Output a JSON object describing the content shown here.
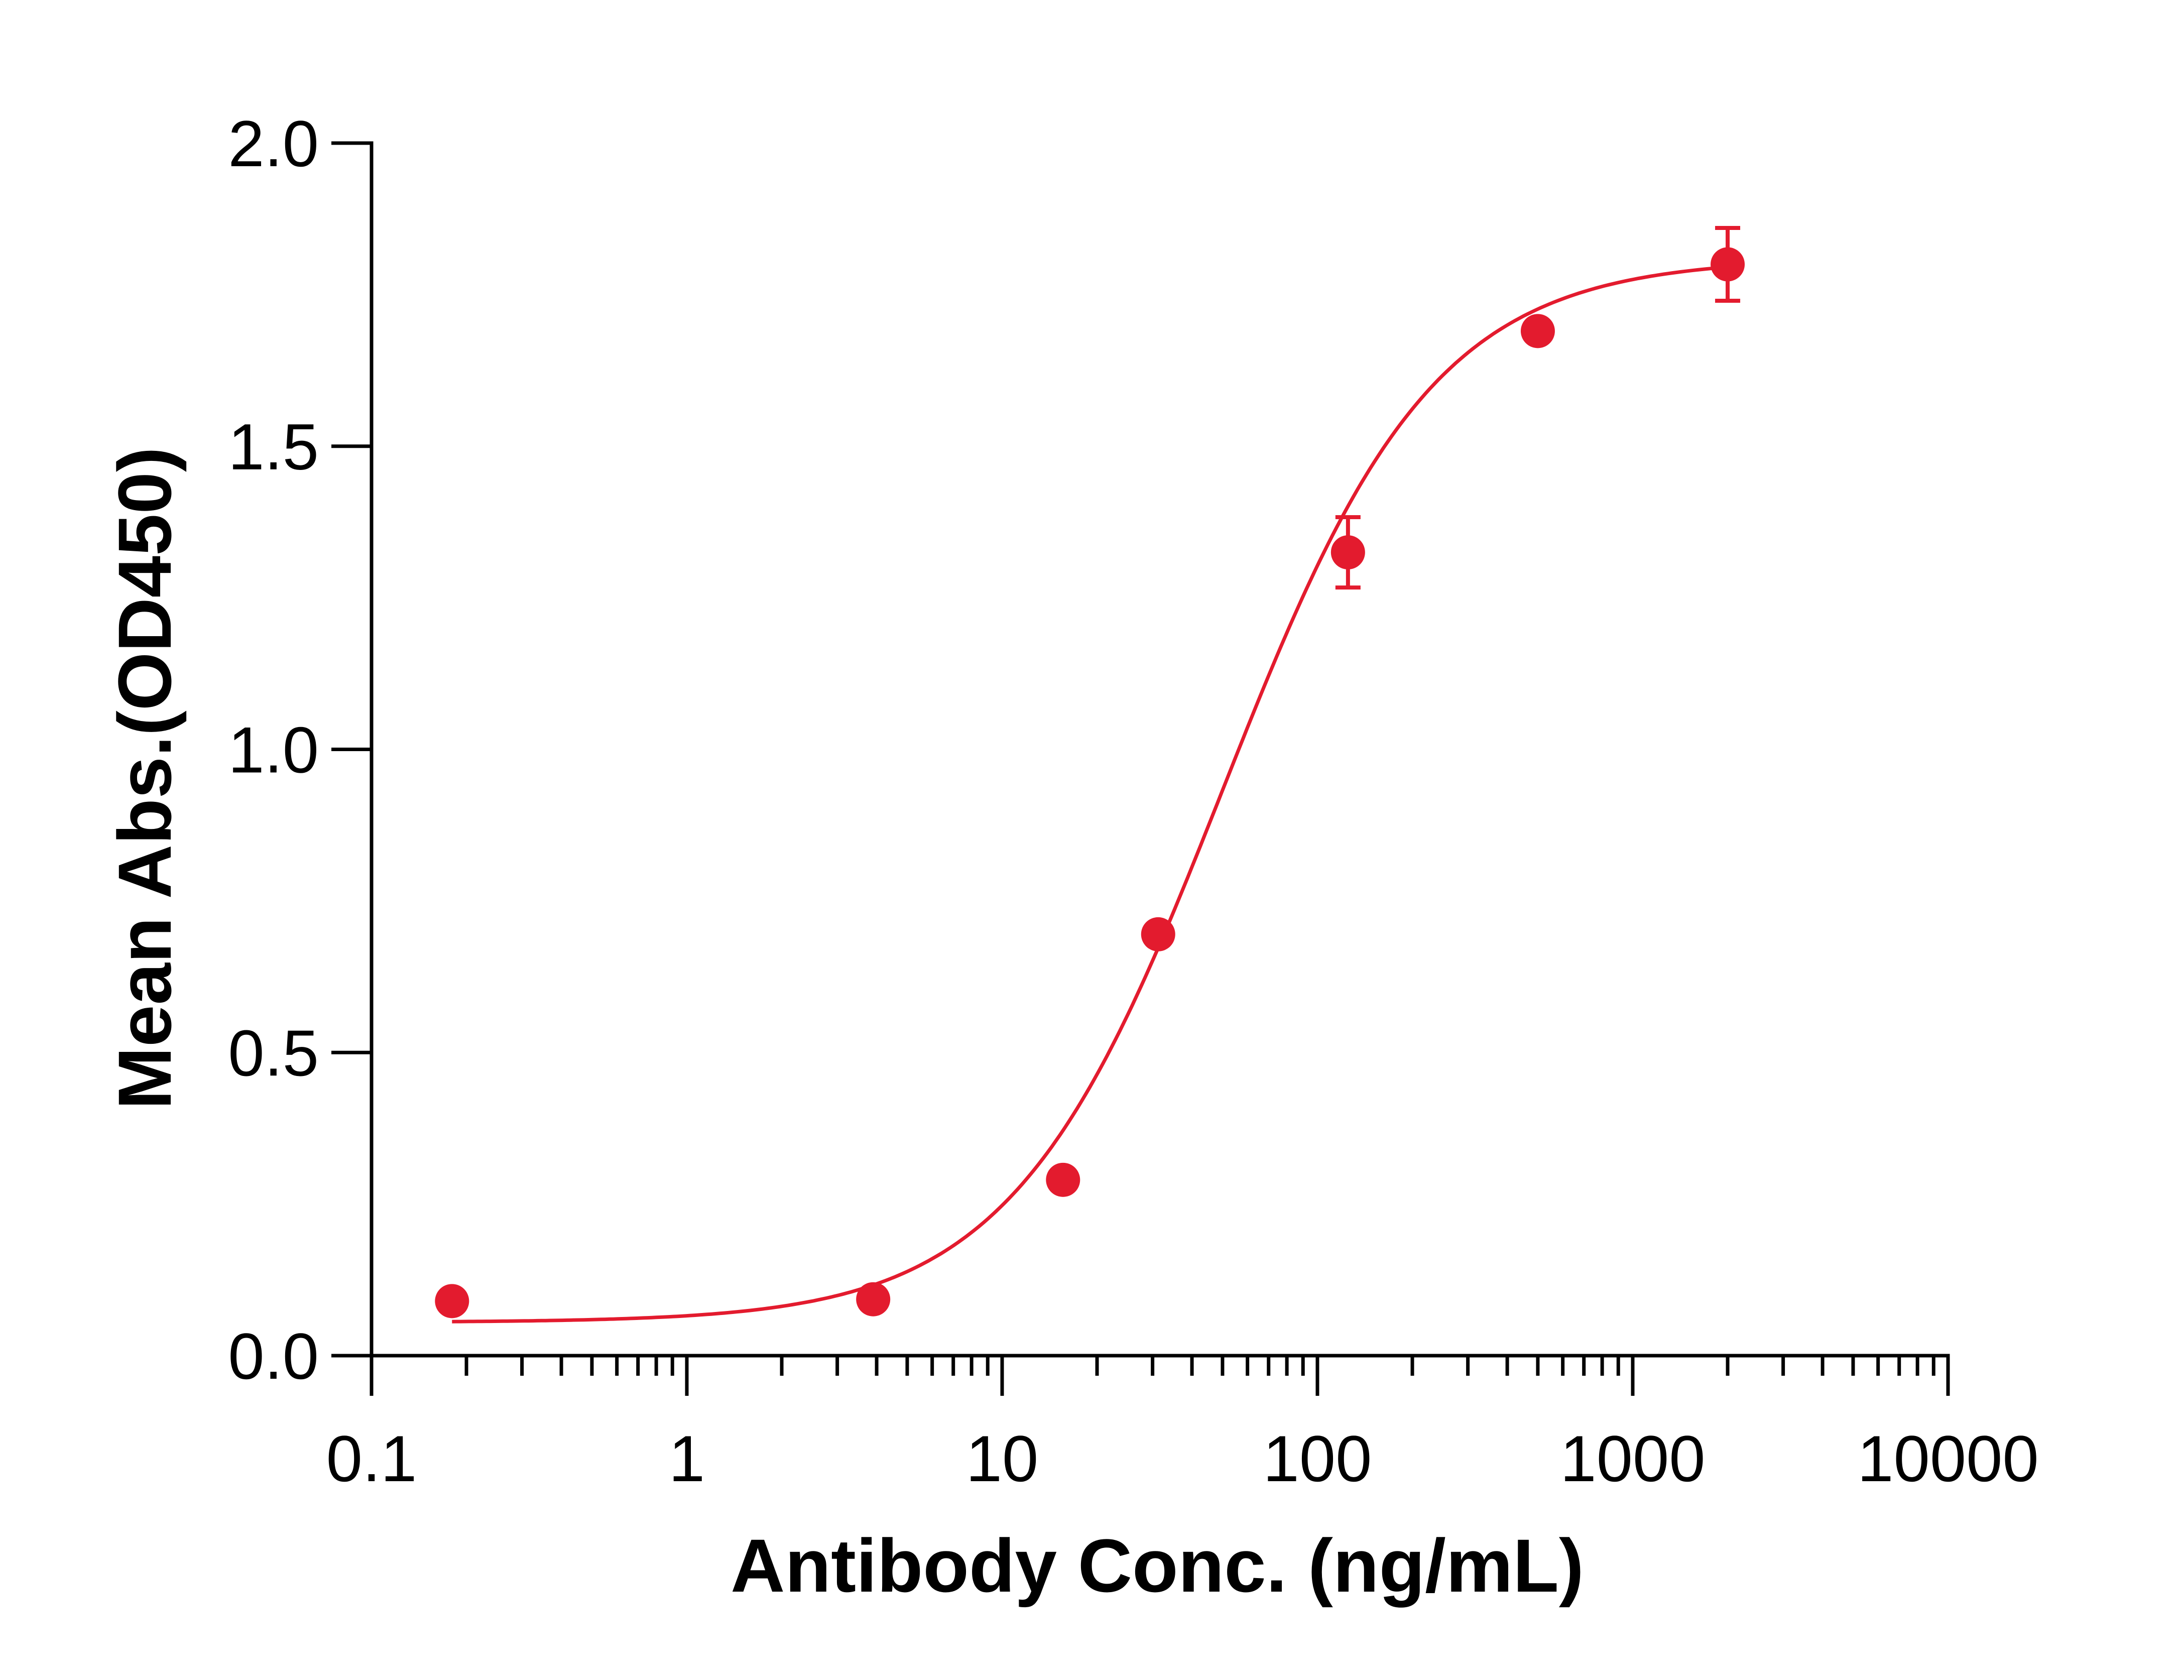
{
  "chart_data": {
    "type": "scatter",
    "title": "",
    "xlabel": "Antibody Conc. (ng/mL)",
    "ylabel": "Mean Abs.(OD450)",
    "x_scale": "log",
    "xlim": [
      0.1,
      10000
    ],
    "ylim": [
      0,
      2.0
    ],
    "x_ticks": [
      0.1,
      1,
      10,
      100,
      1000,
      10000
    ],
    "x_tick_labels": [
      "0.1",
      "1",
      "10",
      "100",
      "1000",
      "10000"
    ],
    "y_ticks": [
      0,
      0.5,
      1.0,
      1.5,
      2.0
    ],
    "y_tick_labels": [
      "0.0",
      "0.5",
      "1.0",
      "1.5",
      "2.0"
    ],
    "grid": false,
    "legend": "none",
    "series": [
      {
        "color": "#e31b2e",
        "x": [
          0.18,
          3.9,
          15.6,
          31.25,
          125,
          500,
          2000
        ],
        "y": [
          0.09,
          0.093,
          0.29,
          0.695,
          1.325,
          1.69,
          1.8
        ],
        "error": [
          0,
          0,
          0,
          0,
          0.058,
          0,
          0.06
        ]
      }
    ],
    "fit_curve": {
      "model": "4PL",
      "bottom": 0.055,
      "top": 1.81,
      "ec50": 50,
      "hill": 1.3,
      "color": "#e31b2e"
    }
  }
}
